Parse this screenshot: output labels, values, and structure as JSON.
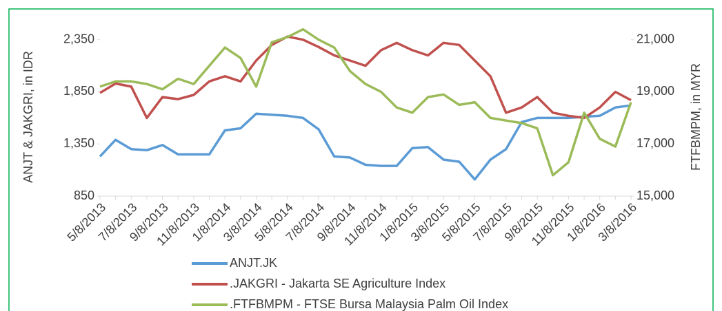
{
  "chart_data": {
    "type": "line",
    "y_label": "ANJT & JAKGRI, in IDR",
    "y2_label": "FTFBMPM, in MYR",
    "categories": [
      "5/8/2013",
      null,
      "7/8/2013",
      null,
      "9/8/2013",
      null,
      "11/8/2013",
      null,
      "1/8/2014",
      null,
      "3/8/2014",
      null,
      "5/8/2014",
      null,
      "7/8/2014",
      null,
      "9/8/2014",
      null,
      "11/8/2014",
      null,
      "1/8/2015",
      null,
      "3/8/2015",
      null,
      "5/8/2015",
      null,
      "7/8/2015",
      null,
      "9/8/2015",
      null,
      "11/8/2015",
      null,
      "1/8/2016",
      null,
      "3/8/2016"
    ],
    "series": [
      {
        "name": "ANJT.JK",
        "color": "#5b9bd5",
        "values": [
          1230,
          1390,
          1300,
          1290,
          1340,
          1250,
          1250,
          1250,
          1480,
          1500,
          1640,
          1630,
          1620,
          1600,
          1490,
          1230,
          1220,
          1150,
          1140,
          1140,
          1310,
          1320,
          1200,
          1180,
          1010,
          1200,
          1300,
          1560,
          1600,
          1600,
          1600,
          1610,
          1620,
          1700,
          1720
        ]
      },
      {
        "name": ".JAKGRI - Jakarta SE Agriculture Index",
        "color": "#c0504d",
        "values": [
          1840,
          1930,
          1900,
          1600,
          1800,
          1780,
          1820,
          1950,
          2000,
          1950,
          2150,
          2300,
          2380,
          2350,
          2280,
          2200,
          2150,
          2100,
          2250,
          2320,
          2250,
          2200,
          2320,
          2300,
          2150,
          2000,
          1650,
          1700,
          1800,
          1650,
          1620,
          1600,
          1700,
          1850,
          1770
        ]
      },
      {
        "name": ".FTFBMPM - FTSE Bursa Malaysia Palm Oil Index",
        "color": "#9bbb59",
        "axis": "y2",
        "values": [
          19200,
          19400,
          19400,
          19300,
          19100,
          19500,
          19300,
          20000,
          20700,
          20300,
          19200,
          20900,
          21100,
          21400,
          21000,
          20700,
          19800,
          19300,
          19000,
          18400,
          18200,
          18800,
          18900,
          18500,
          18600,
          18000,
          17900,
          17800,
          17600,
          15800,
          16300,
          18200,
          17200,
          16900,
          18600
        ]
      }
    ],
    "ylim": [
      850,
      2500
    ],
    "yticks": [
      {
        "value": 850,
        "label": "850"
      },
      {
        "value": 1350,
        "label": "1,350"
      },
      {
        "value": 1850,
        "label": "1,850"
      },
      {
        "value": 2350,
        "label": "2,350"
      }
    ],
    "y2lim": [
      15000,
      21600
    ],
    "y2ticks": [
      {
        "value": 15000,
        "label": "15,000"
      },
      {
        "value": 17000,
        "label": "17,000"
      },
      {
        "value": 19000,
        "label": "19,000"
      },
      {
        "value": 21000,
        "label": "21,000"
      }
    ],
    "grid": false,
    "legend": "bottom"
  }
}
